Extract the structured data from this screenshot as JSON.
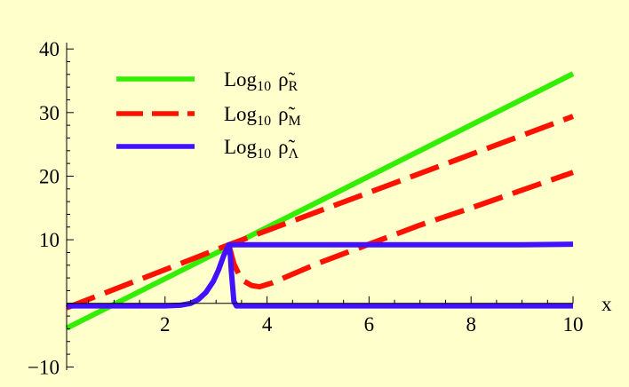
{
  "background": "#ffffcc",
  "chart_data": {
    "type": "line",
    "title": "",
    "xlabel": "x",
    "ylabel": "",
    "xlim": [
      0.07,
      10
    ],
    "ylim": [
      -10.5,
      41
    ],
    "xticks": [
      2,
      4,
      6,
      8,
      10
    ],
    "xtick_labels": [
      "2",
      "4",
      "6",
      "8",
      "10"
    ],
    "yticks": [
      -10,
      10,
      20,
      30,
      40
    ],
    "ytick_labels": [
      "−10",
      "10",
      "20",
      "30",
      "40"
    ],
    "grid": false,
    "legend_position": "top-left",
    "legend": [
      {
        "prefix": "Log",
        "sub": "10",
        "symbol": "ρ̃",
        "symbol_sub": "R",
        "color": "#33ee00",
        "dash": "solid"
      },
      {
        "prefix": "Log",
        "sub": "10",
        "symbol": "ρ̃",
        "symbol_sub": "M",
        "color": "#ff1100",
        "dash": "dashed"
      },
      {
        "prefix": "Log",
        "sub": "10",
        "symbol": "ρ̃",
        "symbol_sub": "Λ",
        "color": "#4411ff",
        "dash": "solid"
      }
    ],
    "series": [
      {
        "name": "Log10 ρ̃R",
        "color": "#33ee00",
        "dash": "solid",
        "points": [
          [
            0.07,
            -3.9
          ],
          [
            10,
            36.1
          ]
        ]
      },
      {
        "name": "Log10 ρ̃M",
        "color": "#ff1100",
        "dash": "dashed",
        "points": [
          [
            0.07,
            -0.7
          ],
          [
            2.0,
            5.3
          ],
          [
            3.25,
            9.2
          ],
          [
            10,
            29.4
          ]
        ]
      },
      {
        "name": "Log10 ρ̃M",
        "color": "#ff1100",
        "dash": "dashed",
        "points": [
          [
            3.25,
            9.2
          ],
          [
            3.35,
            6.2
          ],
          [
            3.5,
            3.7
          ],
          [
            3.7,
            2.8
          ],
          [
            3.85,
            2.6
          ],
          [
            4.1,
            3.2
          ],
          [
            5.0,
            6.3
          ],
          [
            6.0,
            9.3
          ],
          [
            7.0,
            12.3
          ],
          [
            8.0,
            15.0
          ],
          [
            9.0,
            17.8
          ],
          [
            10,
            20.6
          ]
        ]
      },
      {
        "name": "Log10 ρ̃Λ",
        "color": "#4411ff",
        "dash": "solid",
        "points": [
          [
            0.07,
            -0.4
          ],
          [
            2.0,
            -0.4
          ],
          [
            2.3,
            -0.3
          ],
          [
            2.5,
            0.0
          ],
          [
            2.65,
            0.6
          ],
          [
            2.8,
            1.7
          ],
          [
            2.95,
            3.5
          ],
          [
            3.05,
            5.3
          ],
          [
            3.15,
            7.5
          ],
          [
            3.25,
            9.2
          ],
          [
            5.0,
            9.2
          ],
          [
            7.0,
            9.2
          ],
          [
            9.0,
            9.2
          ],
          [
            10,
            9.3
          ]
        ]
      },
      {
        "name": "Log10 ρ̃Λ",
        "color": "#4411ff",
        "dash": "solid",
        "points": [
          [
            3.25,
            9.2
          ],
          [
            3.28,
            7.5
          ],
          [
            3.3,
            5.0
          ],
          [
            3.35,
            0.3
          ],
          [
            3.4,
            -0.4
          ],
          [
            10,
            -0.4
          ]
        ]
      }
    ]
  }
}
